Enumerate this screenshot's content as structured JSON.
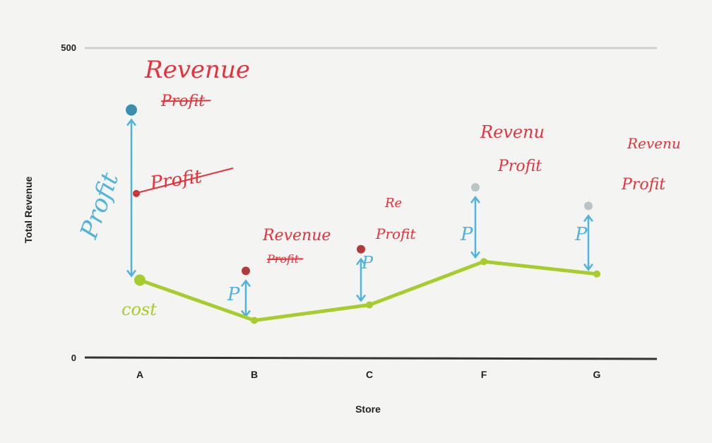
{
  "chart_data": {
    "type": "line",
    "title": "",
    "xlabel": "Store",
    "ylabel": "Total Revenue",
    "ylim": [
      0,
      500
    ],
    "yticks": [
      "0",
      "500"
    ],
    "categories": [
      "A",
      "B",
      "C",
      "F",
      "G"
    ],
    "grid": false,
    "series": [
      {
        "name": "Revenue",
        "values": [
          400,
          140,
          175,
          275,
          245
        ],
        "color": "#3a8fb0"
      },
      {
        "name": "Profit",
        "values": [
          265,
          140,
          175,
          275,
          245
        ],
        "color": "#c9312c"
      },
      {
        "name": "Cost",
        "values": [
          125,
          60,
          85,
          155,
          135
        ],
        "color": "#a6cc2e"
      }
    ]
  },
  "annotations": {
    "revenue": [
      "Revenue",
      "Revenue",
      "Re",
      "Revenu",
      "Revenu"
    ],
    "profit": [
      "Profit",
      "Profit",
      "Profit",
      "Profit",
      "Profit"
    ],
    "profit_short": [
      "Profit",
      "P",
      "P",
      "P",
      "P"
    ],
    "cost": "cost",
    "colors": {
      "red": "#e8313a",
      "blue": "#4fb3e0",
      "green": "#a6cc2e"
    }
  }
}
